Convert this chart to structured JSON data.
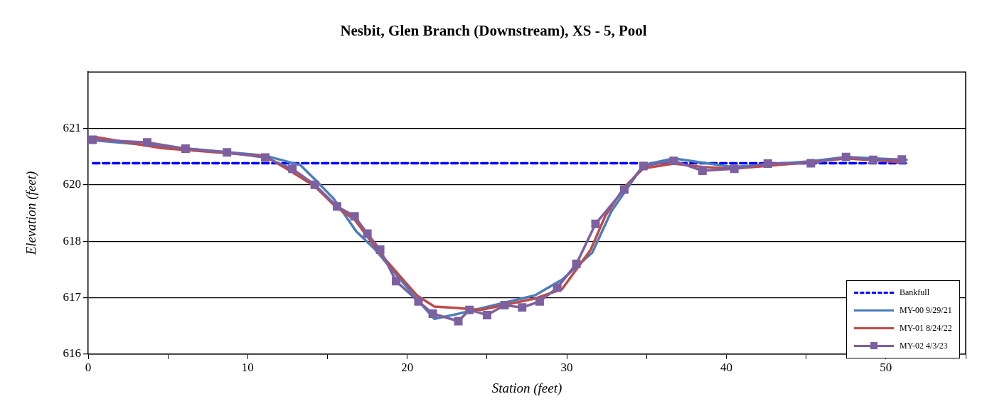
{
  "chart_data": {
    "type": "line",
    "title": "Nesbit, Glen Branch (Downstream), XS - 5, Pool",
    "xlabel": "Station (feet)",
    "ylabel": "Elevation (feet)",
    "xlim": [
      0,
      55
    ],
    "xticks": [
      0,
      {
        "value": 5,
        "label": null
      },
      10,
      {
        "value": 15,
        "label": null
      },
      20,
      {
        "value": 25,
        "label": null
      },
      30,
      {
        "value": 35,
        "label": null
      },
      40,
      {
        "value": 45,
        "label": null
      },
      50,
      {
        "value": 55,
        "label": null
      }
    ],
    "ylim": [
      616,
      622
    ],
    "yticks": [
      616,
      {
        "value": 617.2,
        "label": "617"
      },
      {
        "value": 618.4,
        "label": "618"
      },
      {
        "value": 619.6,
        "label": "620"
      },
      {
        "value": 620.8,
        "label": "621"
      }
    ],
    "grid": "y",
    "legend": "bottom right",
    "series": [
      {
        "name": "Bankfull",
        "color": "#0000ff",
        "line_style": "dashed",
        "marker": "none",
        "x": [
          0.3,
          51.3
        ],
        "values": [
          620.06,
          620.06
        ]
      },
      {
        "name": "MY-00 9/29/21",
        "color": "#4a7ebb",
        "marker": "none",
        "x": [
          0.0,
          11.1,
          13.3,
          14.4,
          15.4,
          16.8,
          18.0,
          19.4,
          20.6,
          21.7,
          23.1,
          28.0,
          29.7,
          31.6,
          32.8,
          34.8,
          36.7,
          40.4,
          45.3,
          47.5,
          51.3
        ],
        "values": [
          620.56,
          620.22,
          620.02,
          619.65,
          619.3,
          618.61,
          618.22,
          617.65,
          617.17,
          616.75,
          616.85,
          617.25,
          617.58,
          618.16,
          619.04,
          620.02,
          620.16,
          619.98,
          620.1,
          620.19,
          620.13
        ]
      },
      {
        "name": "MY-01 8/24/22",
        "color": "#be4b48",
        "marker": "none",
        "x": [
          0.4,
          4.6,
          11.1,
          12.7,
          14.2,
          15.5,
          16.7,
          18.2,
          19.4,
          20.6,
          21.7,
          23.1,
          24.6,
          28.0,
          29.7,
          31.5,
          32.4,
          33.6,
          34.8,
          36.7,
          38.5,
          40.4,
          45.3,
          47.5,
          51.0
        ],
        "values": [
          620.62,
          620.38,
          620.21,
          619.89,
          619.57,
          619.14,
          618.86,
          618.18,
          617.71,
          617.25,
          617.01,
          616.98,
          616.94,
          617.18,
          617.38,
          618.22,
          618.93,
          619.55,
          619.95,
          620.05,
          619.98,
          619.94,
          620.08,
          620.16,
          620.08
        ]
      },
      {
        "name": "MY-02 4/3/23",
        "color": "#7d60a0",
        "marker": "square",
        "x": [
          0.27,
          3.7,
          6.1,
          8.7,
          11.1,
          12.8,
          14.2,
          15.6,
          16.7,
          17.5,
          18.3,
          19.3,
          20.7,
          21.6,
          23.2,
          23.9,
          25.0,
          26.1,
          27.2,
          28.3,
          29.4,
          30.6,
          31.8,
          33.6,
          34.8,
          36.7,
          38.5,
          40.5,
          42.6,
          45.3,
          47.5,
          49.2,
          51.0
        ],
        "values": [
          620.56,
          620.5,
          620.37,
          620.29,
          620.18,
          619.94,
          619.6,
          619.14,
          618.93,
          618.56,
          618.22,
          617.55,
          617.12,
          616.86,
          616.7,
          616.94,
          616.83,
          617.04,
          616.99,
          617.12,
          617.41,
          617.92,
          618.77,
          619.5,
          620.0,
          620.11,
          619.9,
          619.94,
          620.05,
          620.06,
          620.19,
          620.13,
          620.14
        ]
      }
    ]
  }
}
